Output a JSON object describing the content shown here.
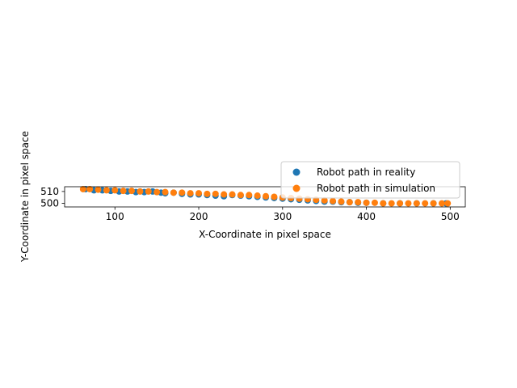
{
  "chart_data": {
    "type": "scatter",
    "xlabel": "X-Coordinate in pixel space",
    "ylabel": "Y-Coordinate in pixel space",
    "xlim": [
      40,
      518
    ],
    "ylim": [
      497,
      514
    ],
    "xticks": [
      100,
      200,
      300,
      400,
      500
    ],
    "yticks": [
      500,
      510
    ],
    "legend_position": "upper-right",
    "grid": false,
    "series": [
      {
        "name": "Robot path in reality",
        "color": "#1f77b4",
        "x": [
          65,
          75,
          85,
          95,
          105,
          115,
          125,
          135,
          145,
          155,
          160,
          170,
          180,
          190,
          200,
          210,
          220,
          230,
          240,
          250,
          260,
          270,
          280,
          290,
          300,
          310,
          320,
          330,
          340,
          350,
          360,
          370,
          380,
          390,
          400,
          420,
          440,
          460,
          480,
          495
        ],
        "y": [
          512,
          511,
          511,
          510.5,
          510,
          510,
          509.5,
          509.5,
          510,
          509,
          508.5,
          509,
          508,
          507.5,
          507.5,
          507,
          506.5,
          506,
          507,
          506.5,
          506,
          505.5,
          505,
          504.5,
          504,
          503.5,
          503,
          502.5,
          502,
          501.5,
          501.5,
          501,
          501,
          500.5,
          500.5,
          500,
          500,
          500,
          500,
          500
        ]
      },
      {
        "name": "Robot path in simulation",
        "color": "#ff7f0e",
        "x": [
          62,
          70,
          80,
          90,
          100,
          110,
          120,
          130,
          140,
          150,
          160,
          170,
          180,
          190,
          200,
          210,
          220,
          230,
          240,
          250,
          260,
          270,
          280,
          290,
          300,
          310,
          320,
          330,
          340,
          350,
          360,
          370,
          380,
          390,
          400,
          410,
          420,
          430,
          440,
          450,
          460,
          470,
          480,
          490,
          497
        ],
        "y": [
          512,
          512,
          511.5,
          511,
          511,
          510.5,
          510.5,
          510,
          510,
          509.5,
          509.5,
          509,
          509,
          508.5,
          508.5,
          508,
          508,
          507.5,
          507.5,
          507,
          507,
          506.5,
          506,
          505.5,
          505,
          504.5,
          504,
          503.5,
          503,
          502.5,
          502,
          501.5,
          501,
          501,
          500.5,
          500.5,
          500,
          500,
          500,
          500,
          500,
          500,
          500,
          500,
          500
        ]
      }
    ]
  }
}
